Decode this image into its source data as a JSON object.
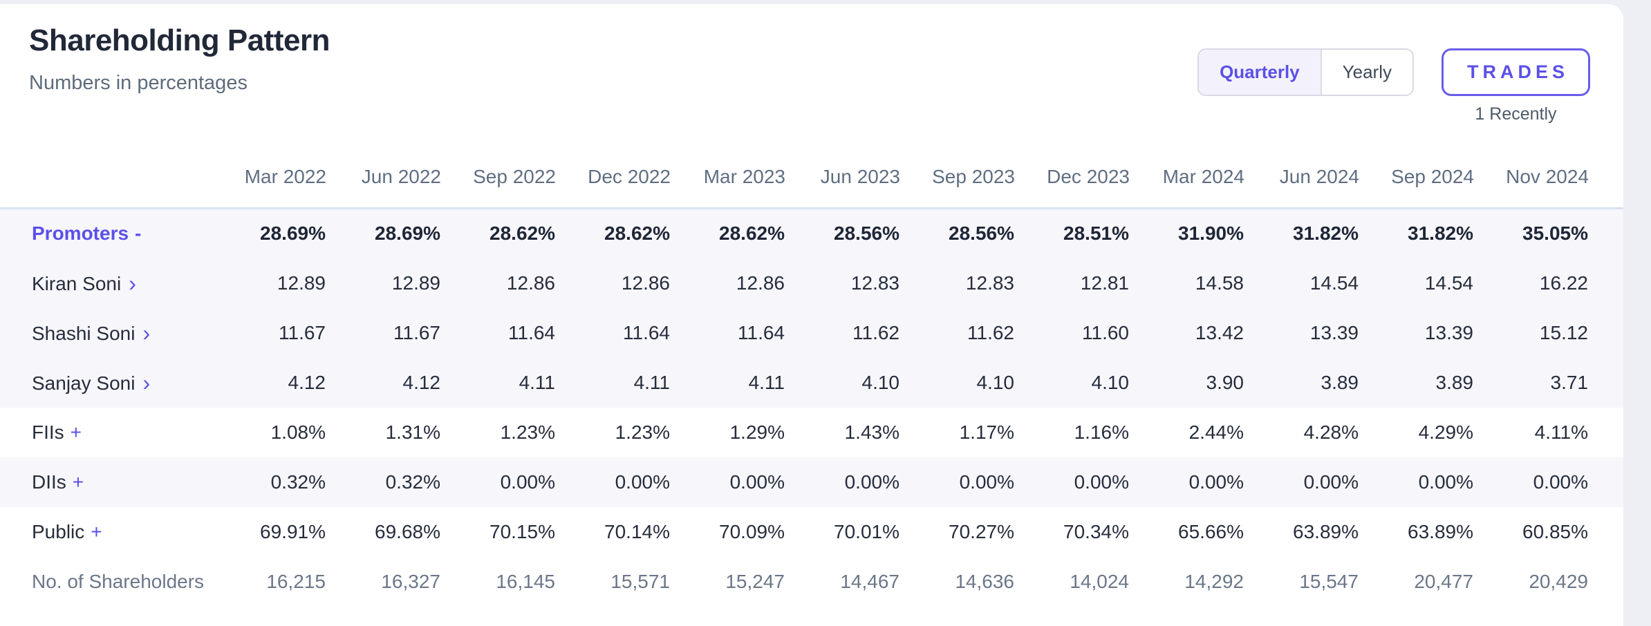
{
  "header": {
    "title": "Shareholding Pattern",
    "subtitle": "Numbers in percentages",
    "period_toggle": {
      "quarterly": "Quarterly",
      "yearly": "Yearly",
      "active": "Quarterly"
    },
    "trades_button": "TRADES",
    "trades_note": "1 Recently"
  },
  "colors": {
    "accent_purple": "#5b50e7",
    "page_background": "#edeff5",
    "card_background": "#ffffff",
    "tinted_row": "#f6f6fb",
    "header_divider": "#dae2ef",
    "title_text": "#212838",
    "muted_text": "#5f6e82"
  },
  "table": {
    "columns": [
      "Mar 2022",
      "Jun 2022",
      "Sep 2022",
      "Dec 2022",
      "Mar 2023",
      "Jun 2023",
      "Sep 2023",
      "Dec 2023",
      "Mar 2024",
      "Jun 2024",
      "Sep 2024",
      "Nov 2024"
    ],
    "rows": [
      {
        "label": "Promoters",
        "suffix": "-",
        "style": "group",
        "tinted": true,
        "values": [
          "28.69%",
          "28.69%",
          "28.62%",
          "28.62%",
          "28.62%",
          "28.56%",
          "28.56%",
          "28.51%",
          "31.90%",
          "31.82%",
          "31.82%",
          "35.05%"
        ]
      },
      {
        "label": "Kiran Soni",
        "suffix": "›",
        "style": "sub",
        "tinted": true,
        "values": [
          "12.89",
          "12.89",
          "12.86",
          "12.86",
          "12.86",
          "12.83",
          "12.83",
          "12.81",
          "14.58",
          "14.54",
          "14.54",
          "16.22"
        ]
      },
      {
        "label": "Shashi Soni",
        "suffix": "›",
        "style": "sub",
        "tinted": true,
        "values": [
          "11.67",
          "11.67",
          "11.64",
          "11.64",
          "11.64",
          "11.62",
          "11.62",
          "11.60",
          "13.42",
          "13.39",
          "13.39",
          "15.12"
        ]
      },
      {
        "label": "Sanjay Soni",
        "suffix": "›",
        "style": "sub",
        "tinted": true,
        "values": [
          "4.12",
          "4.12",
          "4.11",
          "4.11",
          "4.11",
          "4.10",
          "4.10",
          "4.10",
          "3.90",
          "3.89",
          "3.89",
          "3.71"
        ]
      },
      {
        "label": "FIIs",
        "suffix": "+",
        "style": "plain",
        "tinted": false,
        "values": [
          "1.08%",
          "1.31%",
          "1.23%",
          "1.23%",
          "1.29%",
          "1.43%",
          "1.17%",
          "1.16%",
          "2.44%",
          "4.28%",
          "4.29%",
          "4.11%"
        ]
      },
      {
        "label": "DIIs",
        "suffix": "+",
        "style": "plain",
        "tinted": true,
        "values": [
          "0.32%",
          "0.32%",
          "0.00%",
          "0.00%",
          "0.00%",
          "0.00%",
          "0.00%",
          "0.00%",
          "0.00%",
          "0.00%",
          "0.00%",
          "0.00%"
        ]
      },
      {
        "label": "Public",
        "suffix": "+",
        "style": "plain",
        "tinted": false,
        "values": [
          "69.91%",
          "69.68%",
          "70.15%",
          "70.14%",
          "70.09%",
          "70.01%",
          "70.27%",
          "70.34%",
          "65.66%",
          "63.89%",
          "63.89%",
          "60.85%"
        ]
      },
      {
        "label": "No. of Shareholders",
        "suffix": null,
        "style": "muted",
        "tinted": false,
        "values": [
          "16,215",
          "16,327",
          "16,145",
          "15,571",
          "15,247",
          "14,467",
          "14,636",
          "14,024",
          "14,292",
          "15,547",
          "20,477",
          "20,429"
        ]
      }
    ]
  }
}
